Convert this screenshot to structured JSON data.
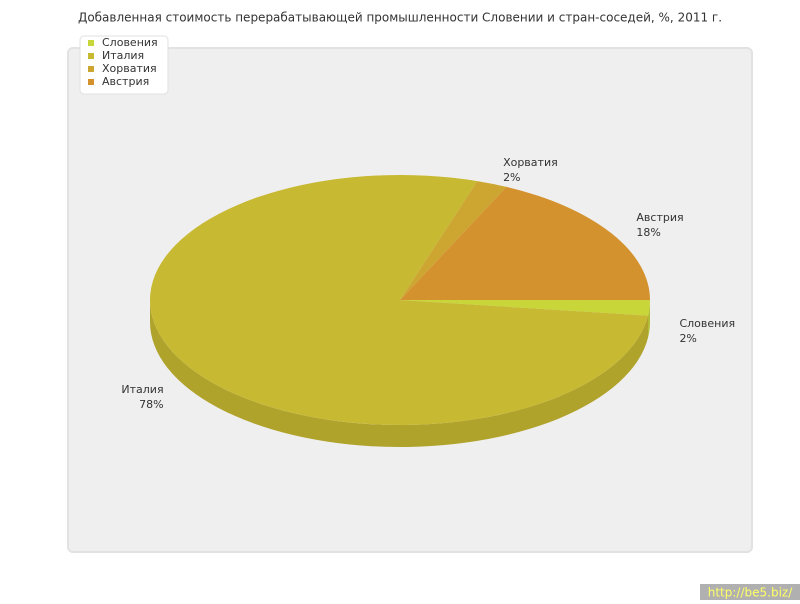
{
  "chart_data": {
    "type": "pie",
    "title": "Добавленная стоимость перерабатывающей промышленности Словении и стран-соседей, %, 2011 г.",
    "categories": [
      "Словения",
      "Италия",
      "Хорватия",
      "Австрия"
    ],
    "values": [
      2,
      78,
      2,
      18
    ],
    "value_labels": [
      "2%",
      "78%",
      "2%",
      "18%"
    ],
    "colors": [
      "#c9d63a",
      "#c8b932",
      "#cda632",
      "#d4922e"
    ],
    "legend": "top-left"
  },
  "watermark": "http://be5.biz/"
}
